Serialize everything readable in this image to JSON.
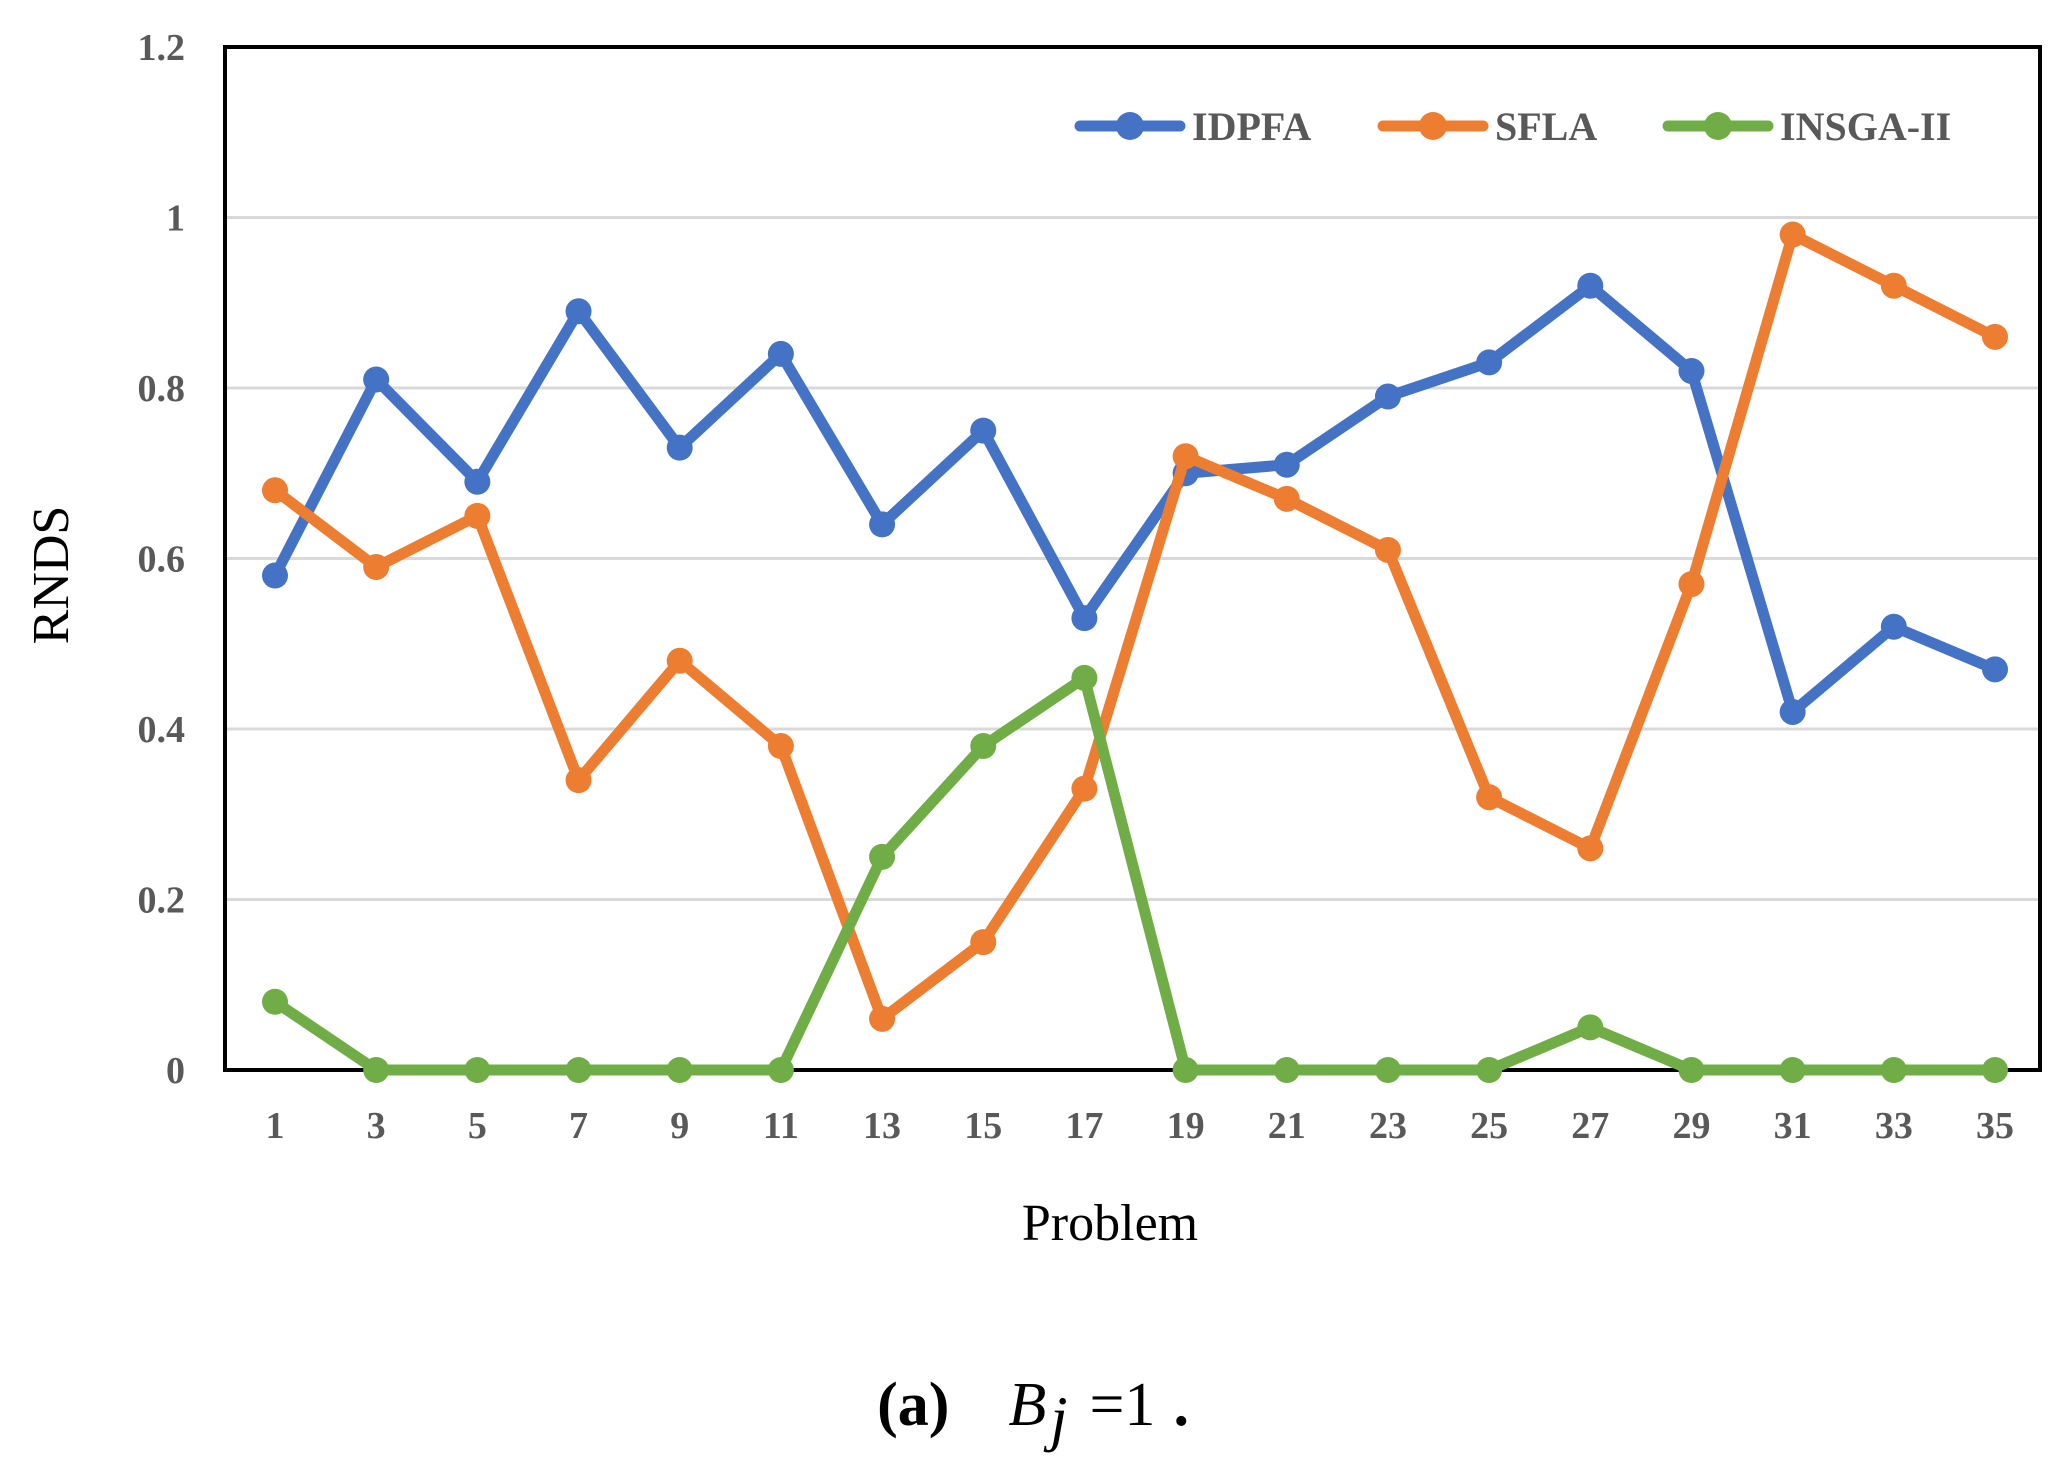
{
  "chart_data": {
    "type": "line",
    "title": "",
    "xlabel": "Problem",
    "ylabel": "RNDS",
    "categories": [
      "1",
      "3",
      "5",
      "7",
      "9",
      "11",
      "13",
      "15",
      "17",
      "19",
      "21",
      "23",
      "25",
      "27",
      "29",
      "31",
      "33",
      "35"
    ],
    "ylim": [
      0,
      1.2
    ],
    "yticks": [
      "0",
      "0.2",
      "0.4",
      "0.6",
      "0.8",
      "1",
      "1.2"
    ],
    "grid": true,
    "legend_position": "top-right",
    "series": [
      {
        "name": "IDPFA",
        "color": "#4472C4",
        "values": [
          0.58,
          0.81,
          0.69,
          0.89,
          0.73,
          0.84,
          0.64,
          0.75,
          0.53,
          0.7,
          0.71,
          0.79,
          0.83,
          0.92,
          0.82,
          0.42,
          0.52,
          0.47
        ]
      },
      {
        "name": "SFLA",
        "color": "#ED7D31",
        "values": [
          0.68,
          0.59,
          0.65,
          0.34,
          0.48,
          0.38,
          0.06,
          0.15,
          0.33,
          0.72,
          0.67,
          0.61,
          0.32,
          0.26,
          0.57,
          0.98,
          0.92,
          0.86
        ]
      },
      {
        "name": "INSGA-II",
        "color": "#70AD47",
        "values": [
          0.08,
          0.0,
          0.0,
          0.0,
          0.0,
          0.0,
          0.25,
          0.38,
          0.46,
          0.0,
          0.0,
          0.0,
          0.0,
          0.05,
          0.0,
          0.0,
          0.0,
          0.0
        ]
      }
    ]
  },
  "caption": {
    "label": "(a)",
    "var": "B",
    "sub": "j",
    "rhs": "=1",
    "end": "."
  }
}
